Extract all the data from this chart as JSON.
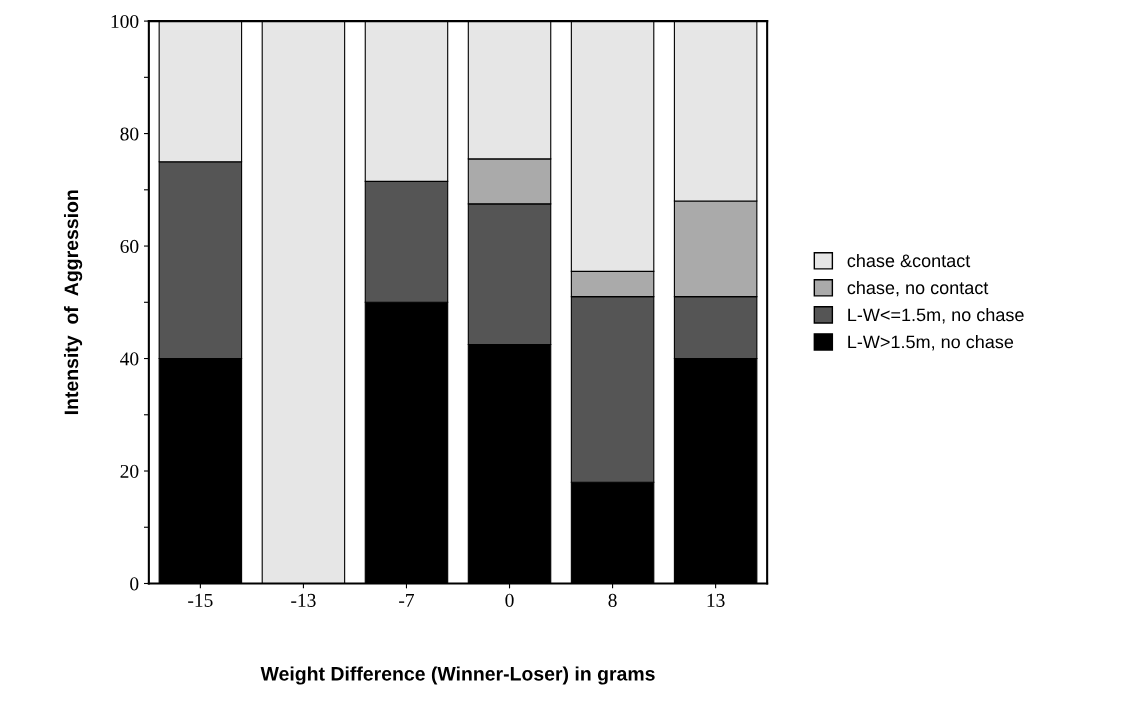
{
  "chart_data": {
    "type": "bar",
    "stacked": true,
    "xlabel": "Weight Difference (Winner-Loser) in grams",
    "ylabel": "Intensity  of  Aggression",
    "categories": [
      "-15",
      "-13",
      "-7",
      "0",
      "8",
      "13"
    ],
    "series": [
      {
        "name": "L-W>1.5m, no chase",
        "color": "#000000",
        "values": [
          40,
          0,
          50,
          42.5,
          18,
          40
        ]
      },
      {
        "name": "L-W<=1.5m, no chase",
        "color": "#555555",
        "values": [
          35,
          0,
          21.5,
          25,
          33,
          11
        ]
      },
      {
        "name": "chase, no contact",
        "color": "#aaaaaa",
        "values": [
          0,
          0,
          0,
          8,
          4.5,
          17
        ]
      },
      {
        "name": "chase &contact",
        "color": "#e6e6e6",
        "values": [
          25,
          100,
          28.5,
          24.5,
          44.5,
          32
        ]
      }
    ],
    "ylim": [
      0,
      100
    ],
    "yticks": [
      0,
      {
        "value": 10,
        "label": null
      },
      20,
      {
        "value": 30,
        "label": null
      },
      40,
      {
        "value": 50,
        "label": null
      },
      60,
      {
        "value": 70,
        "label": null
      },
      80,
      {
        "value": 90,
        "label": null
      },
      100
    ],
    "grid": false,
    "legend": "right"
  }
}
